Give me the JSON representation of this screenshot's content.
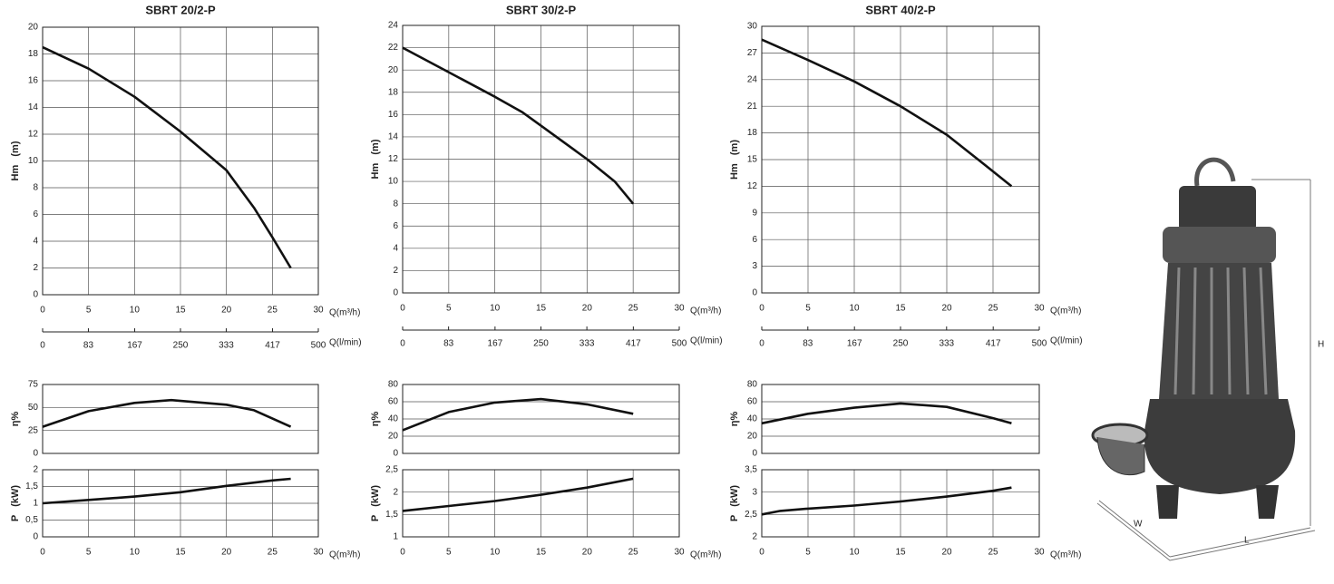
{
  "chart_data": [
    {
      "type": "line",
      "title": "SBRT 20/2-P",
      "ylabel": "Hm   (m)",
      "xlabel": "Q(m³/h)",
      "xlim": [
        0,
        30
      ],
      "xticks": [
        0,
        5,
        10,
        15,
        20,
        25,
        30
      ],
      "ylim": [
        0,
        20
      ],
      "yticks": [
        0,
        2,
        4,
        6,
        8,
        10,
        12,
        14,
        16,
        18,
        20
      ],
      "grid": true,
      "x2label": "Q(l/min)",
      "x2lim": [
        0,
        500
      ],
      "x2ticks": [
        0,
        83,
        167,
        250,
        333,
        417,
        500
      ],
      "x": [
        0,
        5,
        10,
        15,
        20,
        23,
        25,
        27
      ],
      "values": [
        18.5,
        16.9,
        14.8,
        12.2,
        9.3,
        6.5,
        4.3,
        2.0
      ],
      "color": "#111111"
    },
    {
      "type": "line",
      "ylabel": "η%",
      "xlim": [
        0,
        30
      ],
      "ylim": [
        0,
        75
      ],
      "yticks": [
        0,
        25,
        50,
        75
      ],
      "grid": true,
      "x": [
        0,
        5,
        10,
        14,
        20,
        23,
        27
      ],
      "values": [
        29,
        46,
        55,
        58,
        53,
        47,
        29
      ],
      "color": "#111111"
    },
    {
      "type": "line",
      "ylabel": "P   (kW)",
      "xlabel": "Q(m³/h)",
      "xlim": [
        0,
        30
      ],
      "xticks": [
        0,
        5,
        10,
        15,
        20,
        25,
        30
      ],
      "ylim": [
        0,
        2
      ],
      "yticks": [
        0,
        {
          "value": 0.5,
          "label": "0,5"
        },
        1,
        {
          "value": 1.5,
          "label": "1,5"
        },
        2
      ],
      "grid": true,
      "x": [
        0,
        5,
        10,
        15,
        20,
        25,
        27
      ],
      "values": [
        1.0,
        1.1,
        1.2,
        1.33,
        1.52,
        1.68,
        1.73
      ],
      "color": "#111111"
    },
    {
      "type": "line",
      "title": "SBRT 30/2-P",
      "ylabel": "Hm   (m)",
      "xlabel": "Q(m³/h)",
      "xlim": [
        0,
        30
      ],
      "xticks": [
        0,
        5,
        10,
        15,
        20,
        25,
        30
      ],
      "ylim": [
        0,
        24
      ],
      "yticks": [
        0,
        2,
        4,
        6,
        8,
        10,
        12,
        14,
        16,
        18,
        20,
        22,
        24
      ],
      "grid": true,
      "x2label": "Q(l/min)",
      "x2lim": [
        0,
        500
      ],
      "x2ticks": [
        0,
        83,
        167,
        250,
        333,
        417,
        500
      ],
      "x": [
        0,
        5,
        10,
        13,
        15,
        20,
        23,
        25
      ],
      "values": [
        22.0,
        19.8,
        17.6,
        16.2,
        15.0,
        12.0,
        10.0,
        8.0
      ],
      "color": "#111111"
    },
    {
      "type": "line",
      "ylabel": "η%",
      "xlim": [
        0,
        30
      ],
      "ylim": [
        0,
        80
      ],
      "yticks": [
        0,
        20,
        40,
        60,
        80
      ],
      "grid": true,
      "x": [
        0,
        5,
        10,
        15,
        20,
        25
      ],
      "values": [
        27,
        48,
        59,
        63,
        57,
        46
      ],
      "color": "#111111"
    },
    {
      "type": "line",
      "ylabel": "P   (kW)",
      "xlabel": "Q(m³/h)",
      "xlim": [
        0,
        30
      ],
      "xticks": [
        0,
        5,
        10,
        15,
        20,
        25,
        30
      ],
      "ylim": [
        1,
        2.5
      ],
      "yticks": [
        1,
        {
          "value": 1.5,
          "label": "1,5"
        },
        2,
        {
          "value": 2.5,
          "label": "2,5"
        }
      ],
      "grid": true,
      "x": [
        0,
        5,
        10,
        15,
        20,
        25
      ],
      "values": [
        1.58,
        1.69,
        1.8,
        1.94,
        2.1,
        2.3
      ],
      "color": "#111111"
    },
    {
      "type": "line",
      "title": "SBRT 40/2-P",
      "ylabel": "Hm   (m)",
      "xlabel": "Q(m³/h)",
      "xlim": [
        0,
        30
      ],
      "xticks": [
        0,
        5,
        10,
        15,
        20,
        25,
        30
      ],
      "ylim": [
        0,
        30
      ],
      "yticks": [
        0,
        3,
        6,
        9,
        12,
        15,
        18,
        21,
        24,
        27,
        30
      ],
      "grid": true,
      "x2label": "Q(l/min)",
      "x2lim": [
        0,
        500
      ],
      "x2ticks": [
        0,
        83,
        167,
        250,
        333,
        417,
        500
      ],
      "x": [
        0,
        5,
        10,
        15,
        20,
        24,
        27
      ],
      "values": [
        28.5,
        26.2,
        23.8,
        21.0,
        17.8,
        14.5,
        12.0
      ],
      "color": "#111111"
    },
    {
      "type": "line",
      "ylabel": "η%",
      "xlim": [
        0,
        30
      ],
      "ylim": [
        0,
        80
      ],
      "yticks": [
        0,
        20,
        40,
        60,
        80
      ],
      "grid": true,
      "x": [
        0,
        5,
        10,
        15,
        20,
        25,
        27
      ],
      "values": [
        35,
        46,
        53,
        58,
        54,
        41,
        35
      ],
      "color": "#111111"
    },
    {
      "type": "line",
      "ylabel": "P   (kW)",
      "xlabel": "Q(m³/h)",
      "xlim": [
        0,
        30
      ],
      "xticks": [
        0,
        5,
        10,
        15,
        20,
        25,
        30
      ],
      "ylim": [
        2,
        3.5
      ],
      "yticks": [
        2,
        {
          "value": 2.5,
          "label": "2,5"
        },
        3,
        {
          "value": 3.5,
          "label": "3,5"
        }
      ],
      "grid": true,
      "x": [
        0,
        2,
        5,
        10,
        15,
        20,
        25,
        27
      ],
      "values": [
        2.5,
        2.58,
        2.63,
        2.7,
        2.79,
        2.9,
        3.03,
        3.1
      ],
      "color": "#111111"
    }
  ],
  "diagram": {
    "labels": [
      "H",
      "W",
      "L"
    ]
  }
}
